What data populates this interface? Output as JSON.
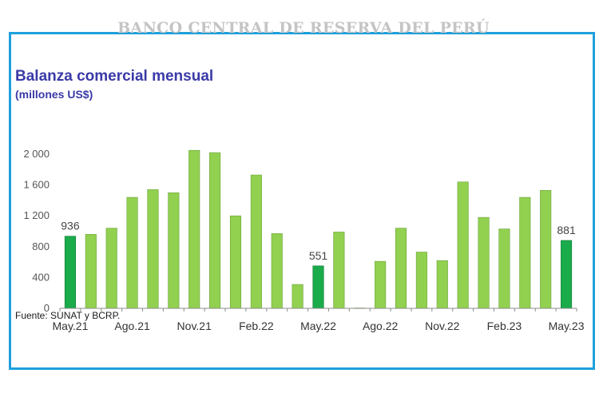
{
  "header": {
    "bank_name": "BANCO CENTRAL DE RESERVA DEL PERÚ"
  },
  "source_note": "Fuente: SUNAT y BCRP.",
  "colors": {
    "frame": "#1ea0dc",
    "bar_light": "#92d050",
    "bar_dark": "#1aab4b",
    "title": "#3a3aa8"
  },
  "chart_data": {
    "type": "bar",
    "title": "Balanza comercial mensual",
    "subtitle": "(millones US$)",
    "xlabel": "",
    "ylabel": "",
    "ylim": [
      0,
      2000
    ],
    "y_ticks": [
      0,
      400,
      800,
      1200,
      1600,
      2000
    ],
    "y_tick_labels": [
      "0",
      "400",
      "800",
      "1 200",
      "1 600",
      "2 000"
    ],
    "categories": [
      "May.21",
      "Jun.21",
      "Jul.21",
      "Ago.21",
      "Sep.21",
      "Oct.21",
      "Nov.21",
      "Dic.21",
      "Ene.22",
      "Feb.22",
      "Mar.22",
      "Abr.22",
      "May.22",
      "Jun.22",
      "Jul.22",
      "Ago.22",
      "Sep.22",
      "Oct.22",
      "Nov.22",
      "Dic.22",
      "Ene.23",
      "Feb.23",
      "Mar.23",
      "Abr.23",
      "May.23"
    ],
    "x_tick_labels": [
      "May.21",
      "Ago.21",
      "Nov.21",
      "Feb.22",
      "May.22",
      "Ago.22",
      "Nov.22",
      "Feb.23",
      "May.23"
    ],
    "values": [
      936,
      960,
      1040,
      1440,
      1540,
      1500,
      2050,
      2020,
      1200,
      1730,
      970,
      310,
      551,
      990,
      5,
      610,
      1040,
      730,
      620,
      1640,
      1180,
      1030,
      1440,
      1530,
      881
    ],
    "highlighted": [
      "May.21",
      "May.22",
      "May.23"
    ],
    "data_labels": [
      {
        "category": "May.21",
        "text": "936"
      },
      {
        "category": "May.22",
        "text": "551"
      },
      {
        "category": "May.23",
        "text": "881"
      }
    ],
    "grid": false,
    "legend": "none"
  }
}
